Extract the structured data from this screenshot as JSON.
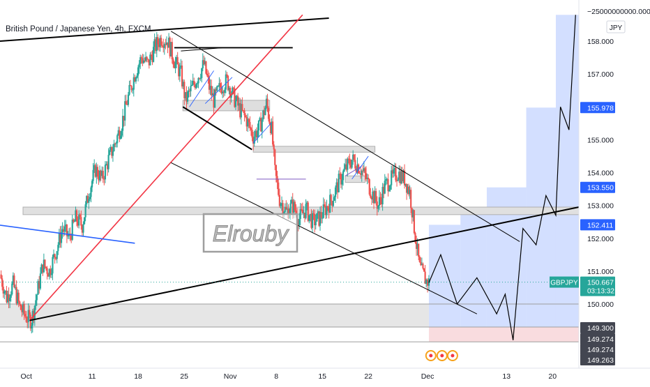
{
  "header": {
    "title": "British Pound / Japanese Yen, 4h, FXCM",
    "currency_button": "JPY",
    "watermark": "Elrouby"
  },
  "chart_data": {
    "type": "candlestick",
    "symbol": "GBPJPY",
    "timeframe": "4h",
    "source": "FXCM",
    "ylim": [
      148.8,
      158.8
    ],
    "y_ticks": [
      "158.000",
      "157.000",
      "155.000",
      "154.000",
      "153.000",
      "152.000",
      "151.000",
      "150.000"
    ],
    "y_top_label": "−25000000000.000",
    "x_ticks": [
      {
        "label": "Oct",
        "day": 0
      },
      {
        "label": "11",
        "day": 10
      },
      {
        "label": "18",
        "day": 17
      },
      {
        "label": "25",
        "day": 24
      },
      {
        "label": "Nov",
        "day": 31
      },
      {
        "label": "8",
        "day": 38
      },
      {
        "label": "15",
        "day": 45
      },
      {
        "label": "22",
        "day": 52
      },
      {
        "label": "Dec",
        "day": 61
      },
      {
        "label": "13",
        "day": 73
      },
      {
        "label": "20",
        "day": 80
      }
    ],
    "x_range_days": [
      -4,
      84
    ],
    "price_labels": [
      {
        "text": "155.978",
        "price": 155.978,
        "style": "blue"
      },
      {
        "text": "153.550",
        "price": 153.55,
        "style": "blue"
      },
      {
        "text": "152.411",
        "price": 152.411,
        "style": "blue"
      },
      {
        "text": "GBPJPY",
        "price": 150.667,
        "style": "teal-name"
      },
      {
        "text": "150.667",
        "price": 150.667,
        "style": "teal",
        "sub": "03:13:32"
      },
      {
        "text": "149.300",
        "price": 149.3,
        "style": "dark"
      },
      {
        "text": "149.274",
        "price": 149.274,
        "style": "dark"
      },
      {
        "text": "149.274",
        "price": 149.274,
        "style": "dark"
      },
      {
        "text": "149.263",
        "price": 149.263,
        "style": "dark"
      }
    ],
    "series": [
      {
        "name": "GBPJPY",
        "type": "candles",
        "close_path": [
          [
            -4,
            150.9
          ],
          [
            -3,
            150.2
          ],
          [
            -2,
            150.6
          ],
          [
            -1,
            149.9
          ],
          [
            0,
            149.6
          ],
          [
            0.8,
            149.5
          ],
          [
            1.6,
            150.3
          ],
          [
            2.5,
            151.2
          ],
          [
            3.5,
            151.0
          ],
          [
            4.5,
            151.6
          ],
          [
            5.5,
            152.3
          ],
          [
            6.5,
            152.0
          ],
          [
            7.5,
            152.6
          ],
          [
            8.5,
            152.4
          ],
          [
            9.5,
            153.4
          ],
          [
            10.5,
            154.1
          ],
          [
            11.5,
            153.8
          ],
          [
            12.5,
            154.4
          ],
          [
            13.5,
            154.9
          ],
          [
            14.5,
            155.5
          ],
          [
            15.5,
            156.3
          ],
          [
            16.5,
            157.0
          ],
          [
            17.5,
            157.5
          ],
          [
            18.5,
            157.3
          ],
          [
            19.5,
            157.8
          ],
          [
            20.5,
            158.1
          ],
          [
            21.5,
            158.0
          ],
          [
            22.5,
            157.4
          ],
          [
            23.5,
            157.0
          ],
          [
            24.2,
            156.2
          ],
          [
            25,
            156.5
          ],
          [
            26,
            156.9
          ],
          [
            27,
            157.3
          ],
          [
            27.8,
            156.6
          ],
          [
            28.5,
            156.2
          ],
          [
            29.5,
            156.6
          ],
          [
            30.5,
            156.8
          ],
          [
            31.5,
            156.3
          ],
          [
            32.5,
            155.9
          ],
          [
            33.5,
            155.6
          ],
          [
            34.5,
            155.1
          ],
          [
            35.5,
            155.4
          ],
          [
            36.5,
            156.1
          ],
          [
            37.3,
            155.3
          ],
          [
            37.8,
            154.0
          ],
          [
            38.5,
            153.2
          ],
          [
            39.5,
            152.8
          ],
          [
            40.5,
            153.0
          ],
          [
            41.5,
            152.6
          ],
          [
            42.5,
            152.9
          ],
          [
            43.5,
            152.5
          ],
          [
            44.5,
            152.6
          ],
          [
            45.5,
            152.9
          ],
          [
            46.5,
            153.2
          ],
          [
            47.5,
            153.7
          ],
          [
            48.5,
            154.1
          ],
          [
            49.5,
            154.4
          ],
          [
            50.5,
            154.2
          ],
          [
            51.5,
            153.9
          ],
          [
            52.5,
            153.4
          ],
          [
            53.5,
            153.0
          ],
          [
            54.5,
            153.6
          ],
          [
            55.5,
            153.8
          ],
          [
            56.5,
            154.0
          ],
          [
            57.5,
            153.8
          ],
          [
            58.3,
            153.4
          ],
          [
            58.8,
            152.6
          ],
          [
            59.3,
            151.8
          ],
          [
            59.8,
            151.1
          ],
          [
            60.3,
            150.9
          ],
          [
            60.8,
            150.7
          ],
          [
            61.2,
            150.667
          ]
        ]
      },
      {
        "name": "Projection",
        "type": "line",
        "points": [
          [
            61.2,
            150.65
          ],
          [
            63,
            151.5
          ],
          [
            65.5,
            150.0
          ],
          [
            68.5,
            150.8
          ],
          [
            71.5,
            149.7
          ],
          [
            72.8,
            150.3
          ],
          [
            74,
            148.9
          ],
          [
            75.5,
            152.3
          ],
          [
            77.5,
            151.8
          ],
          [
            79,
            153.3
          ],
          [
            80.5,
            152.7
          ],
          [
            81.2,
            156.0
          ],
          [
            82.5,
            155.3
          ],
          [
            83.5,
            158.8
          ]
        ]
      }
    ],
    "annotations": [
      {
        "type": "zone",
        "from": 149.3,
        "to": 150.0,
        "color": "gray"
      },
      {
        "type": "zone",
        "from": 152.7,
        "to": 152.95,
        "color": "gray"
      },
      {
        "type": "zone",
        "from": 154.65,
        "to": 154.8,
        "color": "gray"
      },
      {
        "type": "zone",
        "from": 155.9,
        "to": 156.2,
        "color": "gray"
      }
    ],
    "colors": {
      "up": "#26a69a",
      "down": "#ef5350",
      "projection_fill": "#c4d4ff",
      "stop_fill": "#f8d6d9",
      "last_price": "#26a69a",
      "axis_blue": "#2962ff"
    },
    "grid": false,
    "legend": "none"
  }
}
